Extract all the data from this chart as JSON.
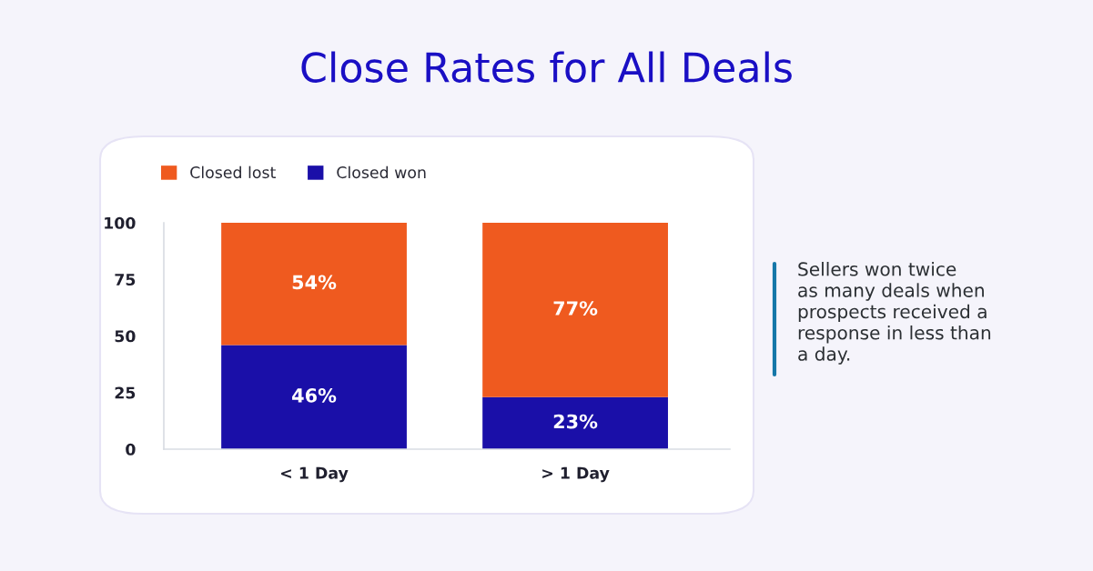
{
  "chart_data": {
    "type": "bar",
    "title": "Close Rates for All Deals",
    "categories": [
      "< 1 Day",
      "> 1 Day"
    ],
    "series": [
      {
        "name": "Closed won",
        "color": "#1a0fa8",
        "values": [
          46,
          23
        ],
        "value_labels": [
          "46%",
          "23%"
        ]
      },
      {
        "name": "Closed lost",
        "color": "#ef5a1f",
        "values": [
          54,
          77
        ],
        "value_labels": [
          "54%",
          "77%"
        ]
      }
    ],
    "stacked": true,
    "ylim": [
      0,
      100
    ],
    "yticks": [
      0,
      25,
      50,
      75,
      100
    ],
    "grid": false,
    "legend": "top left",
    "annotations": [
      "Sellers won twice\nas many deals when\nprospects received a\nresponse in less than\na day."
    ]
  }
}
